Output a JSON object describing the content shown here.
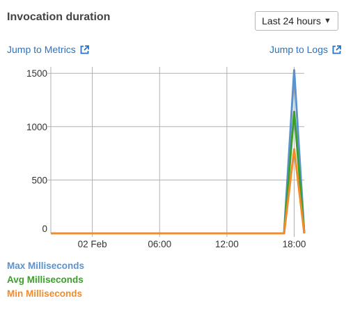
{
  "widget": {
    "title": "Invocation duration",
    "range_label": "Last 24 hours",
    "range_caret": "▼",
    "jump_metrics": "Jump to Metrics",
    "jump_logs": "Jump to Logs"
  },
  "colors": {
    "link": "#2a73c2",
    "max": "#5b93cf",
    "avg": "#3aa02a",
    "min": "#f28b2b",
    "grid": "#b0b0b0"
  },
  "chart_data": {
    "type": "line",
    "x_ticks": [
      "02 Feb",
      "06:00",
      "12:00",
      "18:00"
    ],
    "x_tick_hours": [
      0,
      6,
      12,
      18
    ],
    "xlim": [
      -3.7,
      18.9
    ],
    "ylim": [
      0,
      1560
    ],
    "y_ticks": [
      0,
      500,
      1000,
      1500
    ],
    "x": [
      -3.7,
      17.1,
      18,
      18.9
    ],
    "series": [
      {
        "name": "Max Milliseconds",
        "color": "#5b93cf",
        "values": [
          0,
          0,
          1530,
          0
        ]
      },
      {
        "name": "Avg Milliseconds",
        "color": "#3aa02a",
        "values": [
          0,
          0,
          1140,
          0
        ]
      },
      {
        "name": "Min Milliseconds",
        "color": "#f28b2b",
        "values": [
          0,
          0,
          790,
          0
        ]
      }
    ]
  }
}
